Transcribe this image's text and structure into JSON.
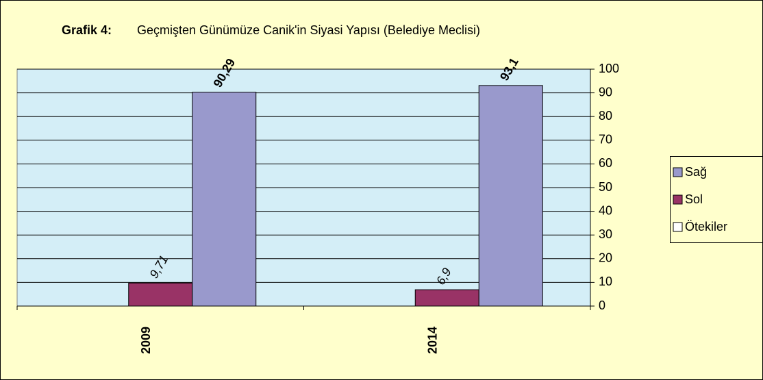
{
  "chart_data": {
    "type": "bar",
    "title_label": "Grafik 4:",
    "title": "Geçmişten Günümüze Canik'in Siyasi Yapısı (Belediye Meclisi)",
    "categories": [
      "2009",
      "2014"
    ],
    "series": [
      {
        "name": "Sağ",
        "color": "#9999cc",
        "values": [
          90.29,
          93.1
        ],
        "value_labels": [
          "90,29",
          "93,1"
        ]
      },
      {
        "name": "Sol",
        "color": "#993366",
        "values": [
          9.71,
          6.9
        ],
        "value_labels": [
          "9,71",
          "6,9"
        ]
      },
      {
        "name": "Ötekiler",
        "color": "#ffffff",
        "values": [
          0,
          0
        ]
      }
    ],
    "ylim": [
      0,
      100
    ],
    "yticks": [
      0,
      10,
      20,
      30,
      40,
      50,
      60,
      70,
      80,
      90,
      100
    ],
    "grid": true
  }
}
